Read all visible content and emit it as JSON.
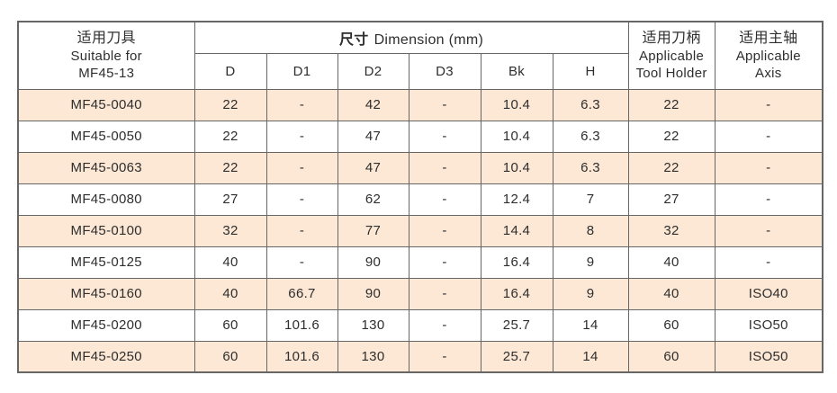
{
  "table": {
    "header": {
      "suitable": {
        "zh": "适用刀具",
        "en_line1": "Suitable for",
        "en_line2": "MF45-13"
      },
      "dimension": {
        "zh": "尺寸",
        "en": "Dimension (mm)"
      },
      "tool_holder": {
        "zh": "适用刀柄",
        "en_line1": "Applicable",
        "en_line2": "Tool Holder"
      },
      "axis": {
        "zh": "适用主轴",
        "en_line1": "Applicable",
        "en_line2": "Axis"
      }
    },
    "sub_headers": [
      "D",
      "D1",
      "D2",
      "D3",
      "Bk",
      "H"
    ],
    "rows": [
      {
        "model": "MF45-0040",
        "values": [
          "22",
          "-",
          "42",
          "-",
          "10.4",
          "6.3",
          "22",
          "-"
        ]
      },
      {
        "model": "MF45-0050",
        "values": [
          "22",
          "-",
          "47",
          "-",
          "10.4",
          "6.3",
          "22",
          "-"
        ]
      },
      {
        "model": "MF45-0063",
        "values": [
          "22",
          "-",
          "47",
          "-",
          "10.4",
          "6.3",
          "22",
          "-"
        ]
      },
      {
        "model": "MF45-0080",
        "values": [
          "27",
          "-",
          "62",
          "-",
          "12.4",
          "7",
          "27",
          "-"
        ]
      },
      {
        "model": "MF45-0100",
        "values": [
          "32",
          "-",
          "77",
          "-",
          "14.4",
          "8",
          "32",
          "-"
        ]
      },
      {
        "model": "MF45-0125",
        "values": [
          "40",
          "-",
          "90",
          "-",
          "16.4",
          "9",
          "40",
          "-"
        ]
      },
      {
        "model": "MF45-0160",
        "values": [
          "40",
          "66.7",
          "90",
          "-",
          "16.4",
          "9",
          "40",
          "ISO40"
        ]
      },
      {
        "model": "MF45-0200",
        "values": [
          "60",
          "101.6",
          "130",
          "-",
          "25.7",
          "14",
          "60",
          "ISO50"
        ]
      },
      {
        "model": "MF45-0250",
        "values": [
          "60",
          "101.6",
          "130",
          "-",
          "25.7",
          "14",
          "60",
          "ISO50"
        ]
      }
    ]
  },
  "colors": {
    "row_alt": "#fce8d5",
    "border": "#666666",
    "text": "#2e2e2e"
  }
}
